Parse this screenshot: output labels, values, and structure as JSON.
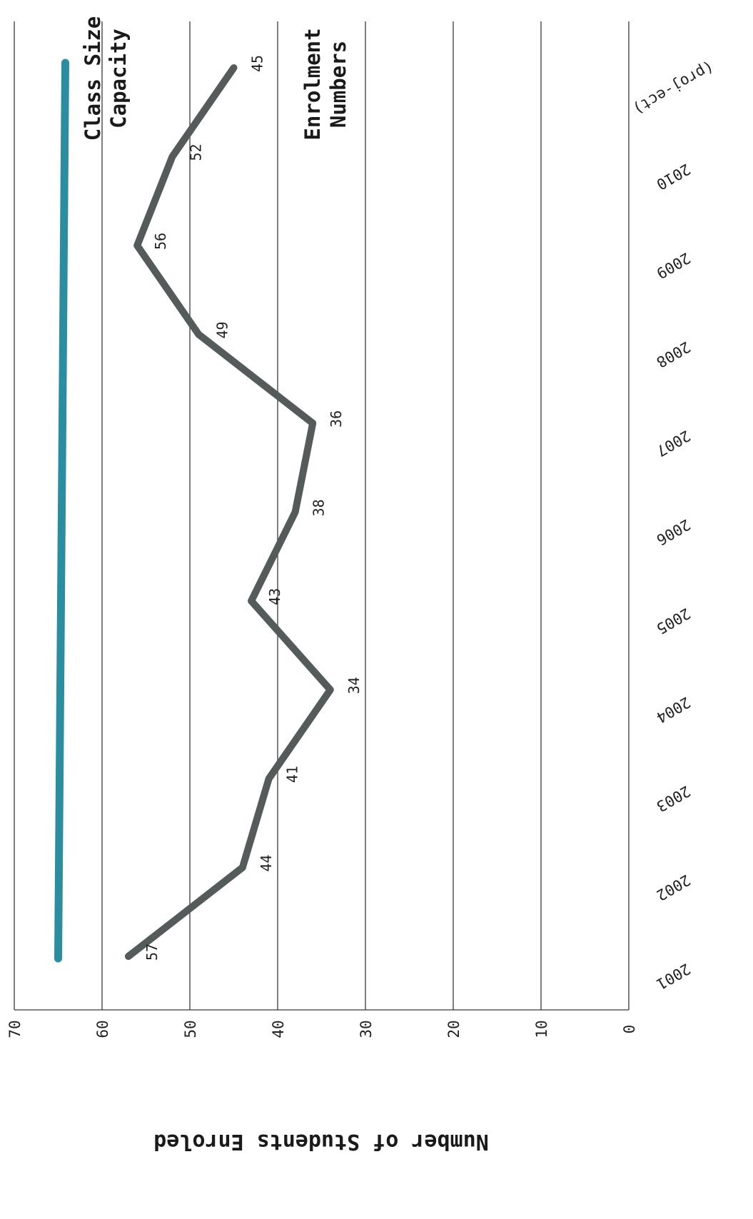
{
  "chart_data": {
    "type": "line",
    "orientation": "rotated-90-clockwise",
    "ylabel": "Number of Students Enroled",
    "xlabel": "",
    "ylim": [
      0,
      70
    ],
    "yticks": [
      "0",
      "10",
      "20",
      "30",
      "40",
      "50",
      "60",
      "70"
    ],
    "categories": [
      "2001",
      "2002",
      "2003",
      "2004",
      "2005",
      "2006",
      "2007",
      "2008",
      "2009",
      "2010",
      "(proj-ect)"
    ],
    "grid": true,
    "series": [
      {
        "name": "Enrolment Numbers",
        "name_lines": [
          "Enrolment",
          "Numbers"
        ],
        "color": "#555b5b",
        "values": [
          57,
          44,
          41,
          34,
          43,
          38,
          36,
          49,
          56,
          52,
          45
        ],
        "labels": [
          "57",
          "44",
          "41",
          "34",
          "43",
          "38",
          "36",
          "49",
          "56",
          "52",
          "45"
        ]
      },
      {
        "name": "Class Size Capacity",
        "name_lines": [
          "Class Size",
          "Capacity"
        ],
        "color": "#2a8ea0",
        "values": [
          65,
          65,
          65,
          65,
          65,
          65,
          65,
          65,
          65,
          65,
          65
        ]
      }
    ]
  }
}
